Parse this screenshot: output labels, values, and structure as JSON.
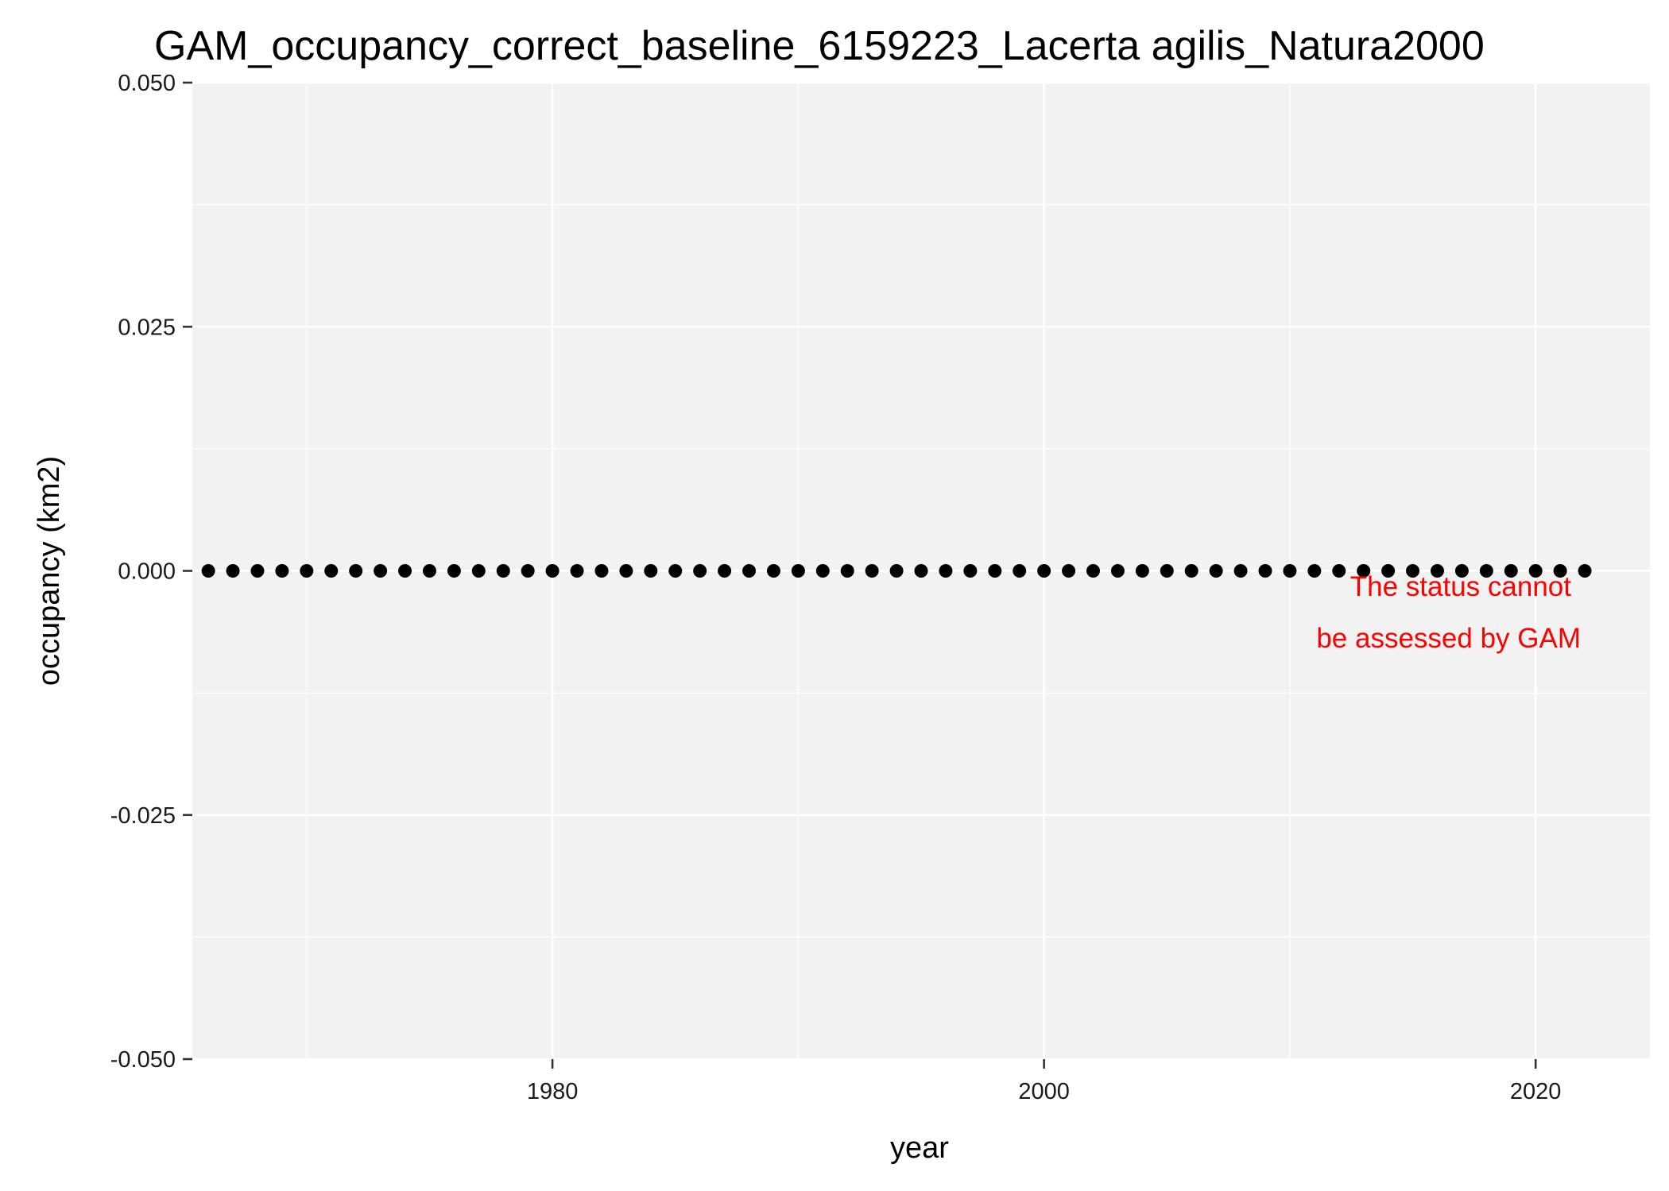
{
  "chart_data": {
    "type": "scatter",
    "title": "GAM_occupancy_correct_baseline_6159223_Lacerta agilis_Natura2000",
    "xlabel": "year",
    "ylabel": "occupancy (km2)",
    "xlim": [
      1965.35,
      2024.65
    ],
    "ylim": [
      -0.05,
      0.05
    ],
    "x_ticks": [
      1980,
      2000,
      2020
    ],
    "x_tick_labels": [
      "1980",
      "2000",
      "2020"
    ],
    "y_ticks": [
      -0.05,
      -0.025,
      0,
      0.025,
      0.05
    ],
    "y_tick_labels": [
      "-0.050",
      "-0.025",
      "0.000",
      "0.025",
      "0.050"
    ],
    "grid": true,
    "legend": "none",
    "series": [
      {
        "color": "#000000",
        "x": [
          1966,
          1967,
          1968,
          1969,
          1970,
          1971,
          1972,
          1973,
          1974,
          1975,
          1976,
          1977,
          1978,
          1979,
          1980,
          1981,
          1982,
          1983,
          1984,
          1985,
          1986,
          1987,
          1988,
          1989,
          1990,
          1991,
          1992,
          1993,
          1994,
          1995,
          1996,
          1997,
          1998,
          1999,
          2000,
          2001,
          2002,
          2003,
          2004,
          2005,
          2006,
          2007,
          2008,
          2009,
          2010,
          2011,
          2012,
          2013,
          2014,
          2015,
          2016,
          2017,
          2018,
          2019,
          2020,
          2021,
          2022
        ],
        "y": [
          0,
          0,
          0,
          0,
          0,
          0,
          0,
          0,
          0,
          0,
          0,
          0,
          0,
          0,
          0,
          0,
          0,
          0,
          0,
          0,
          0,
          0,
          0,
          0,
          0,
          0,
          0,
          0,
          0,
          0,
          0,
          0,
          0,
          0,
          0,
          0,
          0,
          0,
          0,
          0,
          0,
          0,
          0,
          0,
          0,
          0,
          0,
          0,
          0,
          0,
          0,
          0,
          0,
          0,
          0,
          0,
          0
        ]
      }
    ],
    "annotation": {
      "lines": [
        "The status cannot",
        "be assessed by GAM"
      ],
      "color": "#ff0000"
    }
  }
}
